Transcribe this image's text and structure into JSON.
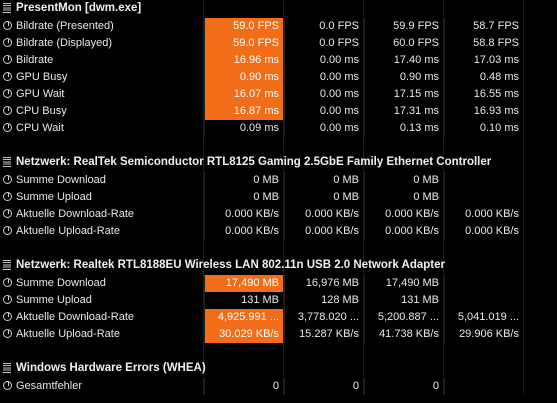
{
  "sections": [
    {
      "title": "PresentMon [dwm.exe]",
      "rows": [
        {
          "label": "Bildrate (Presented)",
          "values": [
            "59.0 FPS",
            "0.0 FPS",
            "59.9 FPS",
            "58.7 FPS"
          ],
          "highlight": [
            true,
            false,
            false,
            false
          ]
        },
        {
          "label": "Bildrate (Displayed)",
          "values": [
            "59.0 FPS",
            "0.0 FPS",
            "60.0 FPS",
            "58.8 FPS"
          ],
          "highlight": [
            true,
            false,
            false,
            false
          ]
        },
        {
          "label": "Bildrate",
          "values": [
            "16.96 ms",
            "0.00 ms",
            "17.40 ms",
            "17.03 ms"
          ],
          "highlight": [
            true,
            false,
            false,
            false
          ]
        },
        {
          "label": "GPU Busy",
          "values": [
            "0.90 ms",
            "0.00 ms",
            "0.90 ms",
            "0.48 ms"
          ],
          "highlight": [
            true,
            false,
            false,
            false
          ]
        },
        {
          "label": "GPU Wait",
          "values": [
            "16.07 ms",
            "0.00 ms",
            "17.15 ms",
            "16.55 ms"
          ],
          "highlight": [
            true,
            false,
            false,
            false
          ]
        },
        {
          "label": "CPU Busy",
          "values": [
            "16.87 ms",
            "0.00 ms",
            "17.31 ms",
            "16.93 ms"
          ],
          "highlight": [
            true,
            false,
            false,
            false
          ]
        },
        {
          "label": "CPU Wait",
          "values": [
            "0.09 ms",
            "0.00 ms",
            "0.13 ms",
            "0.10 ms"
          ],
          "highlight": [
            false,
            false,
            false,
            false
          ]
        }
      ]
    },
    {
      "title": "Netzwerk: RealTek Semiconductor RTL8125 Gaming 2.5GbE Family Ethernet Controller",
      "rows": [
        {
          "label": "Summe Download",
          "values": [
            "0 MB",
            "0 MB",
            "0 MB",
            ""
          ],
          "highlight": [
            false,
            false,
            false,
            false
          ]
        },
        {
          "label": "Summe Upload",
          "values": [
            "0 MB",
            "0 MB",
            "0 MB",
            ""
          ],
          "highlight": [
            false,
            false,
            false,
            false
          ]
        },
        {
          "label": "Aktuelle Download-Rate",
          "values": [
            "0.000 KB/s",
            "0.000 KB/s",
            "0.000 KB/s",
            "0.000 KB/s"
          ],
          "highlight": [
            false,
            false,
            false,
            false
          ]
        },
        {
          "label": "Aktuelle Upload-Rate",
          "values": [
            "0.000 KB/s",
            "0.000 KB/s",
            "0.000 KB/s",
            "0.000 KB/s"
          ],
          "highlight": [
            false,
            false,
            false,
            false
          ]
        }
      ]
    },
    {
      "title": "Netzwerk: Realtek RTL8188EU Wireless LAN 802.11n USB 2.0 Network Adapter",
      "rows": [
        {
          "label": "Summe Download",
          "values": [
            "17,490 MB",
            "16,976 MB",
            "17,490 MB",
            ""
          ],
          "highlight": [
            true,
            false,
            false,
            false
          ]
        },
        {
          "label": "Summe Upload",
          "values": [
            "131 MB",
            "128 MB",
            "131 MB",
            ""
          ],
          "highlight": [
            false,
            false,
            false,
            false
          ]
        },
        {
          "label": "Aktuelle Download-Rate",
          "values": [
            "4,925.991 ...",
            "3,778.020 ...",
            "5,200.887 ...",
            "5,041.019 ..."
          ],
          "highlight": [
            true,
            false,
            false,
            false
          ]
        },
        {
          "label": "Aktuelle Upload-Rate",
          "values": [
            "30.029 KB/s",
            "15.287 KB/s",
            "41.738 KB/s",
            "29.906 KB/s"
          ],
          "highlight": [
            true,
            false,
            false,
            false
          ]
        }
      ]
    },
    {
      "title": "Windows Hardware Errors (WHEA)",
      "rows": [
        {
          "label": "Gesamtfehler",
          "values": [
            "0",
            "0",
            "0",
            ""
          ],
          "highlight": [
            false,
            false,
            false,
            false
          ]
        }
      ]
    }
  ],
  "colors": {
    "highlight": "#f26d1a",
    "background": "#000000",
    "text": "#e6e6e6"
  },
  "icons": {
    "section": "bars-icon",
    "row": "gauge-icon"
  }
}
